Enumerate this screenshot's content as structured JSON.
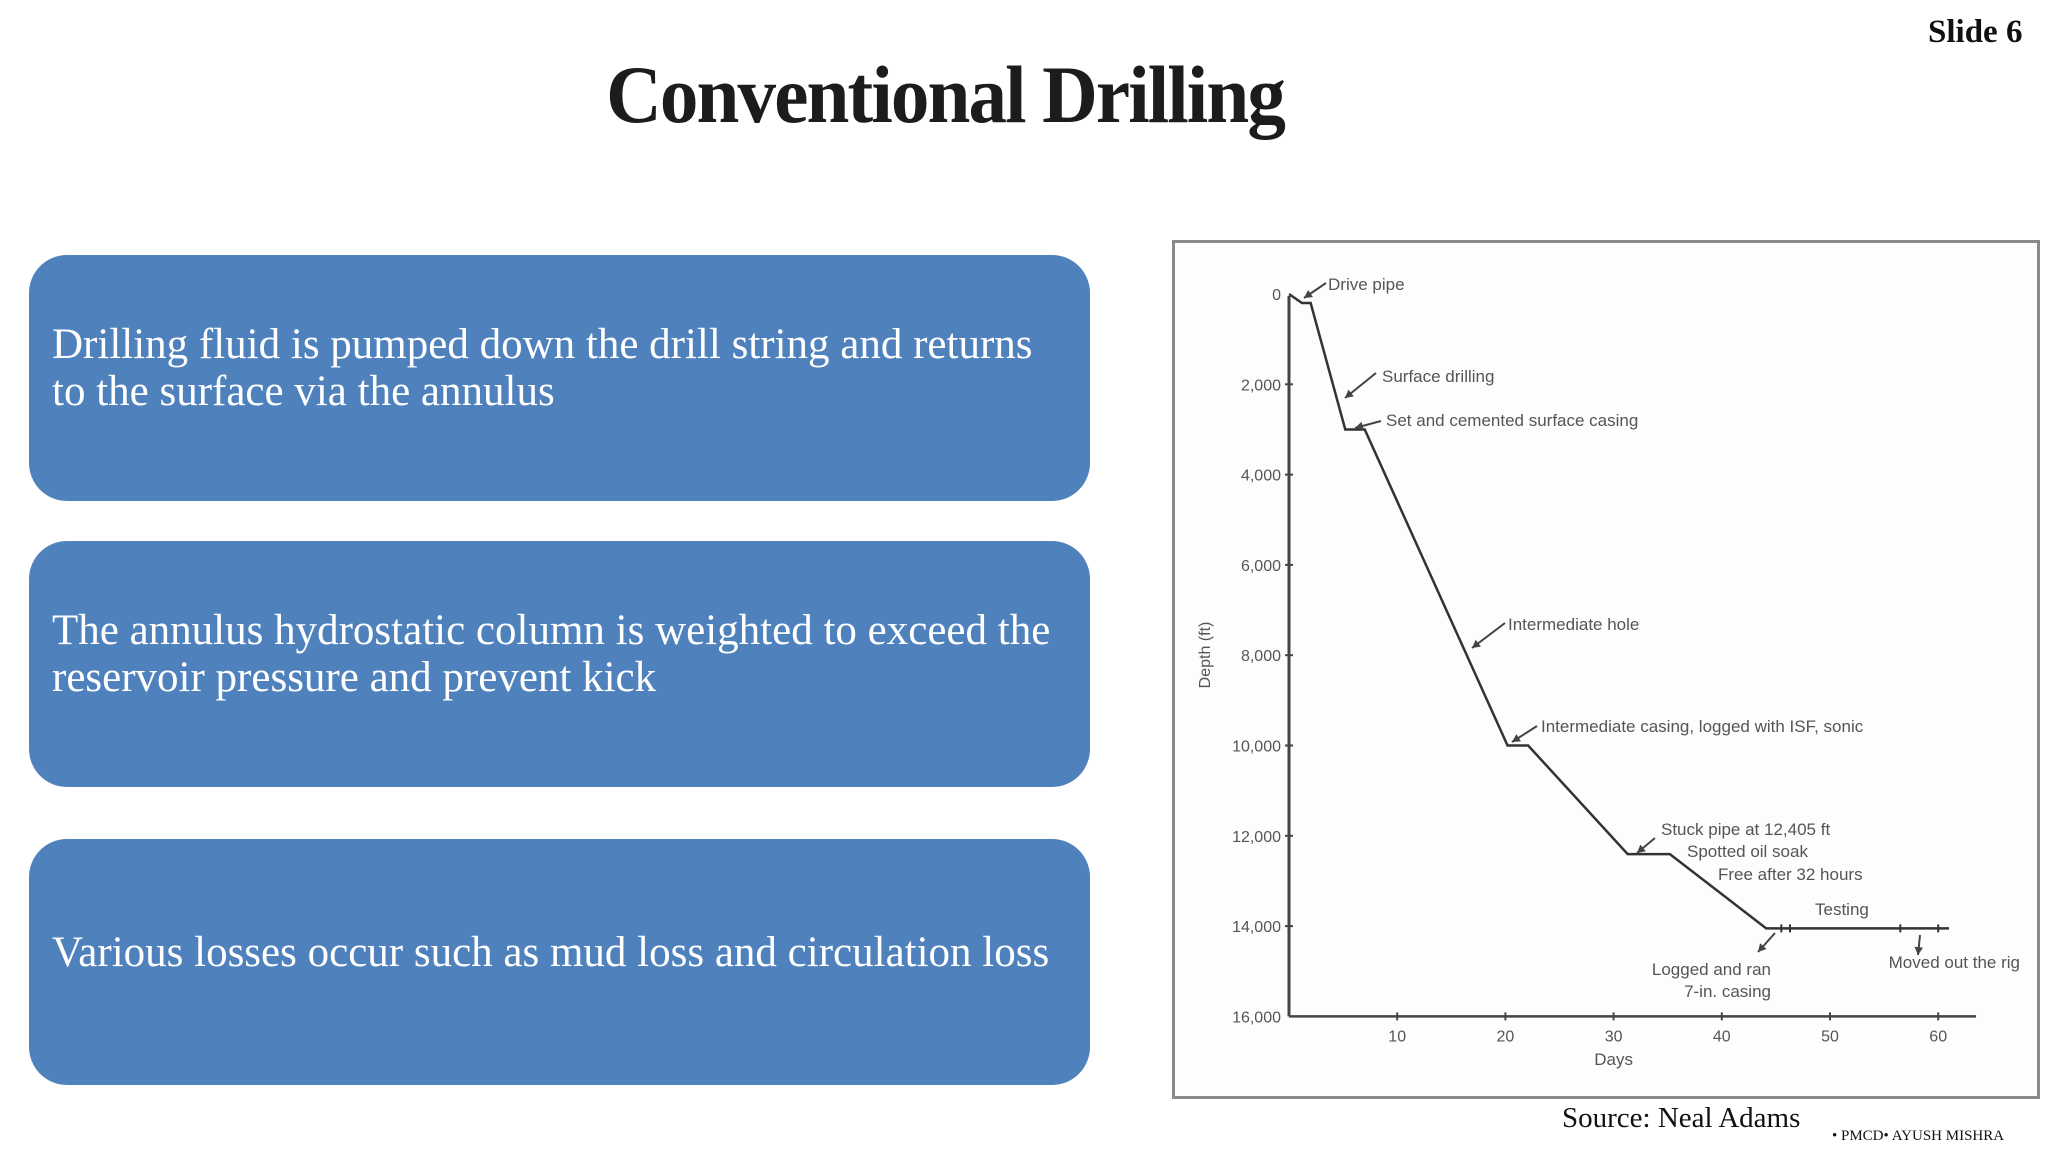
{
  "slide": {
    "number_label": "Slide 6",
    "title": "Conventional Drilling",
    "accent_color": "#4f81bd"
  },
  "boxes": [
    {
      "text": "Drilling fluid is pumped down the drill string and returns to the surface via the annulus"
    },
    {
      "text": "The annulus hydrostatic column is weighted to exceed the reservoir pressure and prevent kick"
    },
    {
      "text": "Various losses occur such as mud loss and circulation loss"
    }
  ],
  "source": "Source: Neal Adams",
  "footer": "• PMCD• AYUSH MISHRA",
  "chart_data": {
    "type": "line",
    "title": "",
    "xlabel": "Days",
    "ylabel": "Depth (ft)",
    "xlim": [
      0,
      63
    ],
    "ylim": [
      16000,
      0
    ],
    "y_inverted": true,
    "grid": false,
    "legend": null,
    "x_ticks": [
      "10",
      "20",
      "30",
      "40",
      "50",
      "60"
    ],
    "y_ticks": [
      "0",
      "2,000",
      "4,000",
      "6,000",
      "8,000",
      "10,000",
      "12,000",
      "14,000",
      "16,000"
    ],
    "series": [
      {
        "name": "Depth vs Days",
        "x": [
          0,
          1.2,
          2,
          5.2,
          7,
          20.2,
          22.1,
          31.3,
          35.2,
          44.1,
          61
        ],
        "y": [
          0,
          200,
          200,
          3000,
          3000,
          10000,
          10000,
          12405,
          12405,
          14050,
          14050
        ]
      }
    ],
    "annotations": [
      {
        "text": "Drive pipe",
        "x": 1.5,
        "y": 200
      },
      {
        "text": "Surface drilling",
        "x": 4.5,
        "y": 2300
      },
      {
        "text": "Set and cemented surface casing",
        "x": 6,
        "y": 3000
      },
      {
        "text": "Intermediate hole",
        "x": 16,
        "y": 8000
      },
      {
        "text": "Intermediate casing, logged with ISF, sonic",
        "x": 21,
        "y": 10000
      },
      {
        "text": "Stuck pipe at 12,405 ft",
        "x": 32,
        "y": 12405
      },
      {
        "text": "Spotted oil soak",
        "x": 33,
        "y": 12800
      },
      {
        "text": "Free after 32 hours",
        "x": 34,
        "y": 13300
      },
      {
        "text": "Testing",
        "x": 50,
        "y": 14050
      },
      {
        "text": "Logged and ran",
        "x": 44,
        "y": 14050
      },
      {
        "text": "7-in. casing",
        "x": 44,
        "y": 14500
      },
      {
        "text": "Moved out the rig",
        "x": 59,
        "y": 14050
      }
    ]
  }
}
